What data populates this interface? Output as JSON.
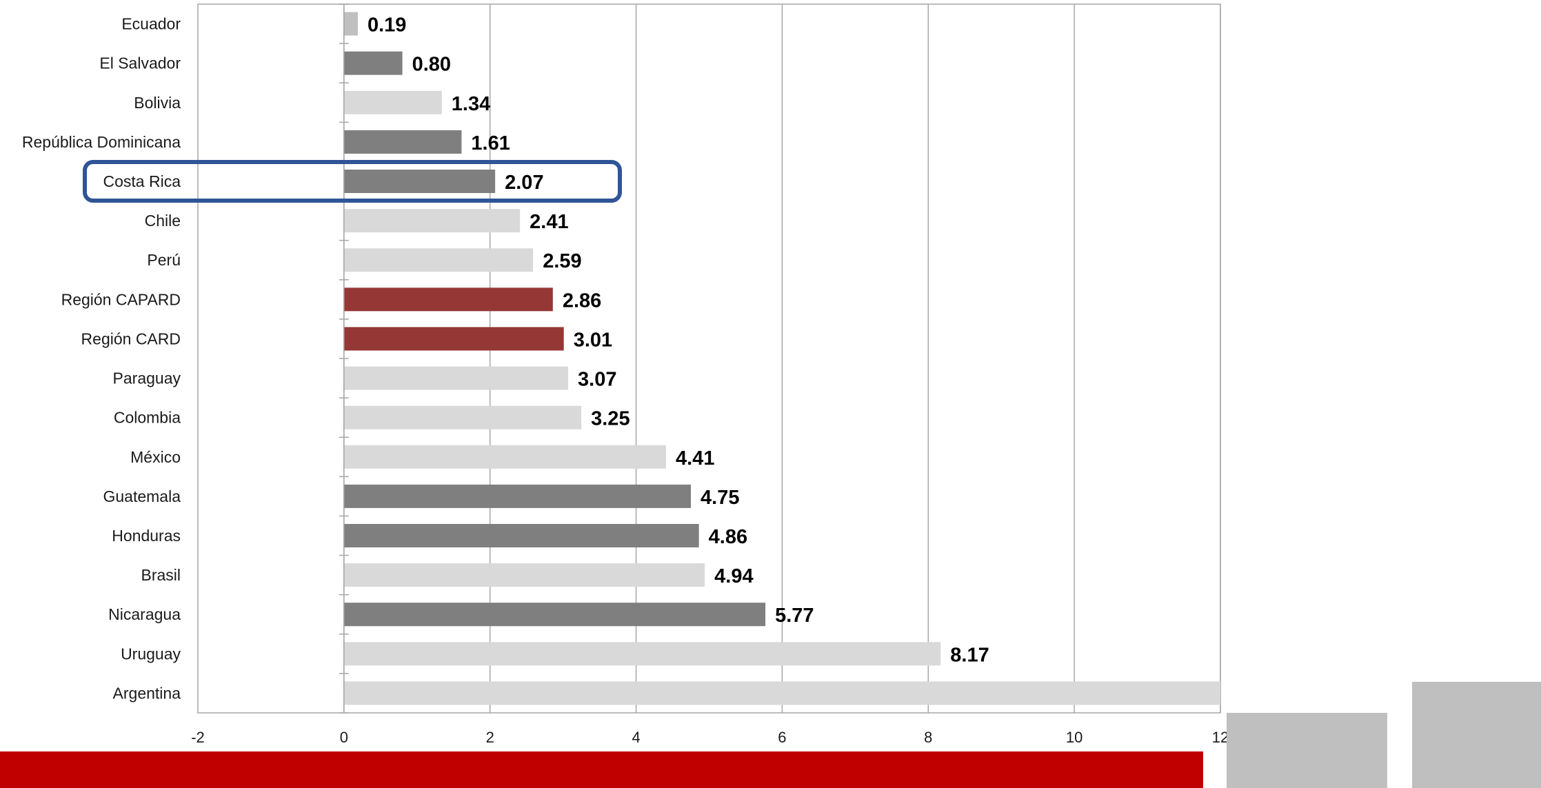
{
  "chart_data": {
    "type": "bar",
    "orientation": "horizontal",
    "categories": [
      "Ecuador",
      "El Salvador",
      "Bolivia",
      "República Dominicana",
      "Costa Rica",
      "Chile",
      "Perú",
      "Región CAPARD",
      "Región CARD",
      "Paraguay",
      "Colombia",
      "México",
      "Guatemala",
      "Honduras",
      "Brasil",
      "Nicaragua",
      "Uruguay",
      "Argentina"
    ],
    "values": [
      0.19,
      0.8,
      1.34,
      1.61,
      2.07,
      2.41,
      2.59,
      2.86,
      3.01,
      3.07,
      3.25,
      4.41,
      4.75,
      4.86,
      4.94,
      5.77,
      8.17,
      12
    ],
    "value_labels": [
      "0.19",
      "0.80",
      "1.34",
      "1.61",
      "2.07",
      "2.41",
      "2.59",
      "2.86",
      "3.01",
      "3.07",
      "3.25",
      "4.41",
      "4.75",
      "4.86",
      "4.94",
      "5.77",
      "8.17",
      ""
    ],
    "bar_colors": [
      "#bfbfbf",
      "#7f7f7f",
      "#d9d9d9",
      "#7f7f7f",
      "#7f7f7f",
      "#d9d9d9",
      "#d9d9d9",
      "#953735",
      "#953735",
      "#d9d9d9",
      "#d9d9d9",
      "#d9d9d9",
      "#7f7f7f",
      "#7f7f7f",
      "#d9d9d9",
      "#7f7f7f",
      "#d9d9d9",
      "#d9d9d9"
    ],
    "x_ticks": [
      "-2",
      "0",
      "2",
      "4",
      "6",
      "8",
      "10",
      "12"
    ],
    "xlim": [
      -2,
      12
    ],
    "grid": true,
    "title": "",
    "xlabel": "",
    "ylabel": "",
    "highlighted_category": "Costa Rica",
    "highlight_color": "#2f5597"
  },
  "decor": {
    "band_color": "#c00000",
    "block_color": "#bfbfbf"
  }
}
